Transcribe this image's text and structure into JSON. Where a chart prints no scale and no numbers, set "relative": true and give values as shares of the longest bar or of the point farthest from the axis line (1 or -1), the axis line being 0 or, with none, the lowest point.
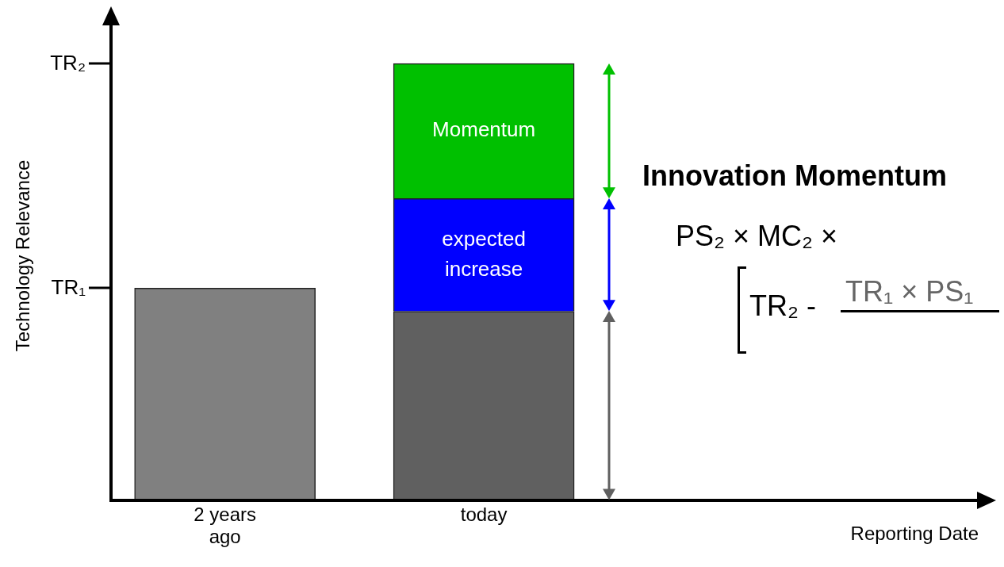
{
  "chart_data": {
    "type": "bar",
    "stacked": true,
    "relative": true,
    "categories": [
      "2 years ago",
      "today"
    ],
    "series": [
      {
        "colors": [
          "#808080",
          "#606060"
        ],
        "values": [
          0.486,
          0.433
        ]
      },
      {
        "name": "expected increase",
        "color": "#0000ff",
        "values": [
          null,
          0.258
        ]
      },
      {
        "name": "Momentum",
        "color": "#00c000",
        "values": [
          null,
          0.309
        ]
      }
    ],
    "ylabel": "Technology Relevance",
    "annotations": [
      "TR₁",
      "TR₂",
      "Innovation Momentum",
      "PS₂ × MC₂ ×",
      "TR₂ -",
      "TR₁ × PS₁",
      "Reporting Date"
    ],
    "legend": false
  }
}
